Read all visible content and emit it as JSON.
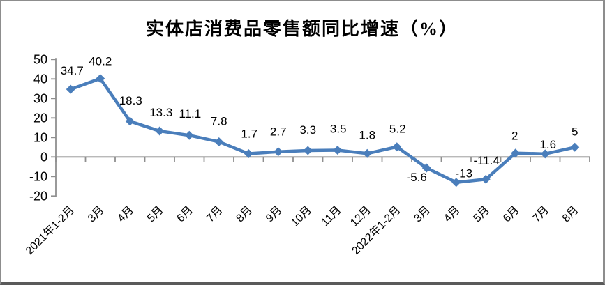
{
  "chart_data": {
    "type": "line",
    "title": "实体店消费品零售额同比增速（%）",
    "categories": [
      "2021年1-2月",
      "3月",
      "4月",
      "5月",
      "6月",
      "7月",
      "8月",
      "9月",
      "10月",
      "11月",
      "12月",
      "2022年1-2月",
      "3月",
      "4月",
      "5月",
      "6月",
      "7月",
      "8月"
    ],
    "values": [
      34.7,
      40.2,
      18.3,
      13.3,
      11.1,
      7.8,
      1.7,
      2.7,
      3.3,
      3.5,
      1.8,
      5.2,
      -5.6,
      -13,
      -11.4,
      2,
      1.6,
      5
    ],
    "labels": [
      "34.7",
      "40.2",
      "18.3",
      "13.3",
      "11.1",
      "7.8",
      "1.7",
      "2.7",
      "3.3",
      "3.5",
      "1.8",
      "5.2",
      "-5.6",
      "-13",
      "-11.4",
      "2",
      "1.6",
      "5"
    ],
    "xlabel": "",
    "ylabel": "",
    "ylim": [
      -20,
      50
    ],
    "y_ticks": [
      50,
      40,
      30,
      20,
      10,
      0,
      -10,
      -20
    ],
    "grid": false,
    "legend": "none",
    "x_label_rotation": 45,
    "line_color": "#4a7ebb",
    "axis_color": "#8f8f8f",
    "text_color": "#000000"
  }
}
